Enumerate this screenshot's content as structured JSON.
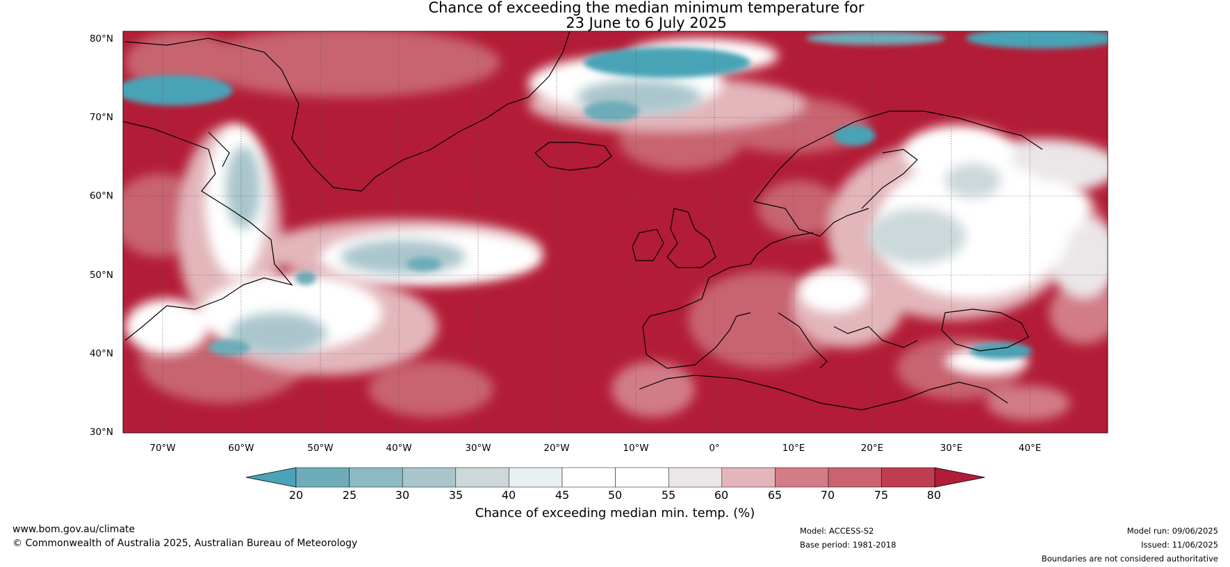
{
  "title": {
    "line1": "Chance of exceeding the median minimum temperature for",
    "line2": "23 June to 6 July 2025"
  },
  "latitude_labels": [
    "80°N",
    "70°N",
    "60°N",
    "50°N",
    "40°N",
    "30°N"
  ],
  "longitude_labels": [
    "70°W",
    "60°W",
    "50°W",
    "40°W",
    "30°W",
    "20°W",
    "10°W",
    "0°",
    "10°E",
    "20°E",
    "30°E",
    "40°E"
  ],
  "map": {
    "lat_range": [
      30,
      80
    ],
    "lon_range": [
      -75,
      50
    ],
    "regions": [
      "Atlantic Ocean",
      "Greenland",
      "Eastern North America",
      "Europe",
      "North Africa",
      "Middle East"
    ]
  },
  "colorbar": {
    "ticks": [
      "20",
      "25",
      "30",
      "35",
      "40",
      "45",
      "50",
      "55",
      "60",
      "65",
      "70",
      "75",
      "80"
    ],
    "colors": [
      "#4aa3b6",
      "#6eacb9",
      "#8bbac5",
      "#aac6cc",
      "#ccd8da",
      "#e9f0f1",
      "#ffffff",
      "#ffffff",
      "#ebe6e7",
      "#e2b6bb",
      "#d27c87",
      "#c8636f",
      "#be3e50",
      "#b31c36"
    ],
    "label": "Chance of exceeding median min. temp. (%)"
  },
  "footer": {
    "website": "www.bom.gov.au/climate",
    "copyright": "© Commonwealth of Australia 2025, Australian Bureau of Meteorology",
    "model": "Model: ACCESS-S2",
    "base_period": "Base period: 1981-2018",
    "model_run": "Model run: 09/06/2025",
    "issued": "Issued: 11/06/2025",
    "disclaimer": "Boundaries are not considered authoritative"
  }
}
